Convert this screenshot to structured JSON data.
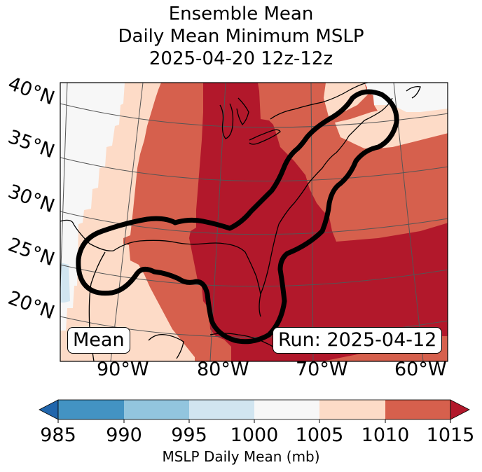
{
  "title": {
    "line1": "Ensemble Mean",
    "line2": "Daily Mean Minimum MSLP",
    "line3": "2025-04-20 12z-12z"
  },
  "map": {
    "latitude_labels": [
      "40°N",
      "35°N",
      "30°N",
      "25°N",
      "20°N"
    ],
    "longitude_labels": [
      "90°W",
      "80°W",
      "70°W",
      "60°W"
    ],
    "left_box_text": "Mean",
    "right_box_text": "Run: 2025-04-12",
    "contour_color": "#000000",
    "coastline_color": "#000000",
    "gridline_color": "#555555"
  },
  "colorbar": {
    "label": "MSLP Daily Mean (mb)",
    "ticks": [
      "985",
      "990",
      "995",
      "1000",
      "1005",
      "1010",
      "1015"
    ],
    "extend": "both",
    "bins": [
      {
        "range": "<985",
        "color": "#2166ac"
      },
      {
        "range": "985-990",
        "color": "#4393c3"
      },
      {
        "range": "990-995",
        "color": "#92c5de"
      },
      {
        "range": "995-1000",
        "color": "#d1e5f0"
      },
      {
        "range": "1000-1005",
        "color": "#f7f7f7"
      },
      {
        "range": "1005-1010",
        "color": "#fddbc7"
      },
      {
        "range": "1010-1015",
        "color": "#d6604d"
      },
      {
        "range": ">1015",
        "color": "#b2182b"
      }
    ]
  }
}
